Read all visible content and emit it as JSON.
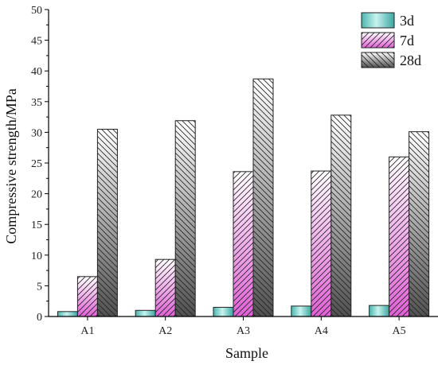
{
  "chart_data": {
    "type": "bar",
    "title": "",
    "xlabel": "Sample",
    "ylabel": "Compressive strength/MPa",
    "categories": [
      "A1",
      "A2",
      "A3",
      "A4",
      "A5"
    ],
    "ylim": [
      0,
      50
    ],
    "yticks": [
      0,
      5,
      10,
      15,
      20,
      25,
      30,
      35,
      40,
      45,
      50
    ],
    "grid": false,
    "legend_position": "top-right",
    "series": [
      {
        "name": "3d",
        "values": [
          0.8,
          1.0,
          1.5,
          1.7,
          1.8
        ],
        "color": "#5ec8c3",
        "pattern": "solid-gradient"
      },
      {
        "name": "7d",
        "values": [
          6.5,
          9.3,
          23.6,
          23.7,
          26.0
        ],
        "color": "#e26ad8",
        "pattern": "hatch-forward"
      },
      {
        "name": "28d",
        "values": [
          30.5,
          31.9,
          38.7,
          32.8,
          30.1
        ],
        "color": "#555555",
        "pattern": "hatch-backward"
      }
    ]
  }
}
